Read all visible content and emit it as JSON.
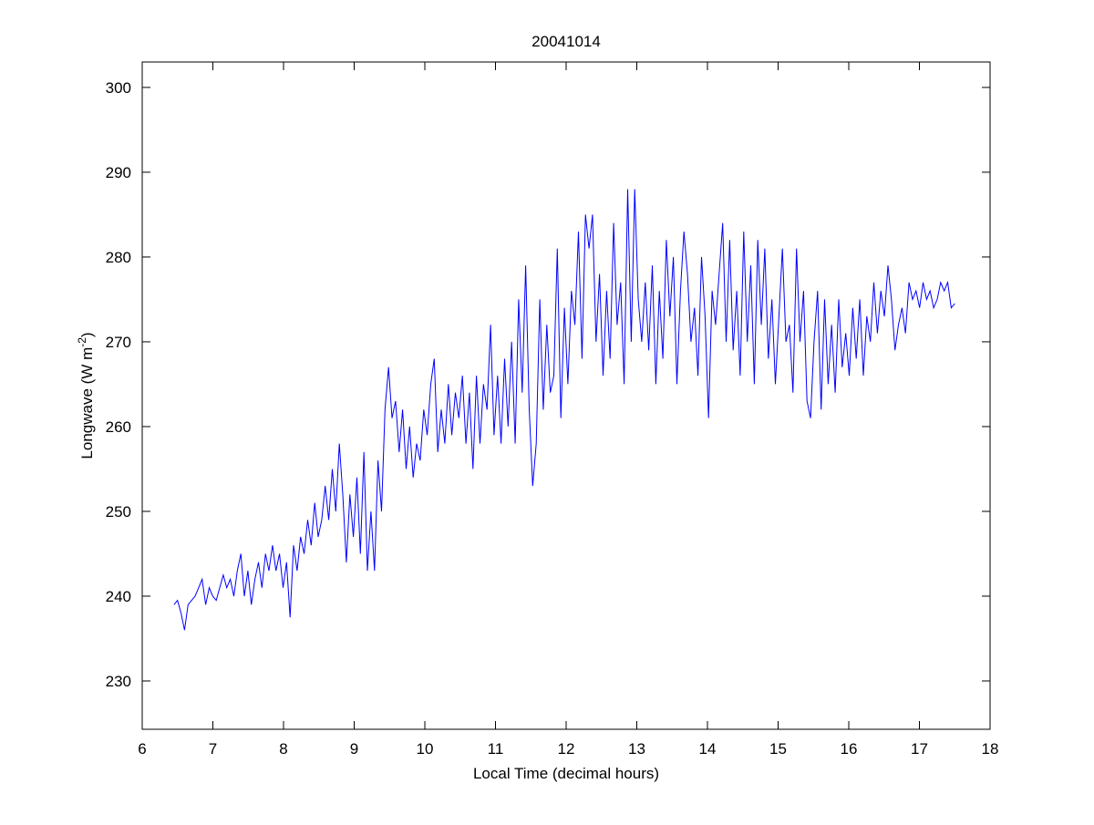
{
  "chart_data": {
    "type": "line",
    "title": "20041014",
    "xlabel": "Local Time (decimal hours)",
    "ylabel_main": "Longwave (W m",
    "ylabel_sup": "-2",
    "ylabel_close": ")",
    "xlim": [
      6,
      18
    ],
    "ylim": [
      224.3,
      303
    ],
    "xticks": [
      6,
      7,
      8,
      9,
      10,
      11,
      12,
      13,
      14,
      15,
      16,
      17,
      18
    ],
    "yticks": [
      230,
      240,
      250,
      260,
      270,
      280,
      290,
      300
    ],
    "grid": false,
    "line_color": "#0000ff",
    "x_first": 6.45,
    "x_last": 17.5,
    "series": [
      {
        "name": "Longwave",
        "values": [
          239,
          239.5,
          238,
          236,
          239,
          239.5,
          240,
          241,
          242,
          239,
          241,
          240,
          239.5,
          241,
          242.5,
          241,
          242,
          240,
          243,
          245,
          240,
          243,
          239,
          242,
          244,
          241,
          245,
          243,
          246,
          243,
          245,
          241,
          244,
          237.5,
          246,
          243,
          247,
          245,
          249,
          246,
          251,
          247,
          249,
          253,
          249,
          255,
          250,
          258,
          252,
          244,
          252,
          247,
          254,
          245,
          257,
          243,
          250,
          243,
          256,
          250,
          262,
          267,
          261,
          263,
          257,
          262,
          255,
          260,
          254,
          258,
          256,
          262,
          259,
          265,
          268,
          257,
          262,
          258,
          265,
          259,
          264,
          261,
          266,
          258,
          264,
          255,
          266,
          258,
          265,
          262,
          272,
          259,
          266,
          258,
          268,
          260,
          270,
          258,
          275,
          264,
          279,
          262,
          253,
          258,
          275,
          262,
          272,
          264,
          266,
          281,
          261,
          274,
          265,
          276,
          272,
          283,
          268,
          285,
          281,
          285,
          270,
          278,
          266,
          276,
          268,
          284,
          272,
          277,
          265,
          288,
          270,
          288,
          275,
          270,
          277,
          269,
          279,
          265,
          276,
          268,
          282,
          273,
          280,
          265,
          276,
          283,
          278,
          270,
          274,
          266,
          280,
          273,
          261,
          276,
          272,
          278,
          284,
          270,
          282,
          269,
          276,
          266,
          283,
          270,
          279,
          265,
          282,
          272,
          281,
          268,
          275,
          265,
          273,
          281,
          270,
          272,
          264,
          281,
          270,
          276,
          263,
          261,
          270,
          276,
          262,
          275,
          265,
          272,
          264,
          275,
          267,
          271,
          266,
          274,
          268,
          275,
          266,
          273,
          270,
          277,
          271,
          276,
          273,
          279,
          275,
          269,
          272,
          274,
          271,
          277,
          275,
          276,
          274,
          277,
          275,
          276,
          274,
          275,
          277,
          276,
          277,
          274,
          274.5
        ]
      }
    ]
  }
}
